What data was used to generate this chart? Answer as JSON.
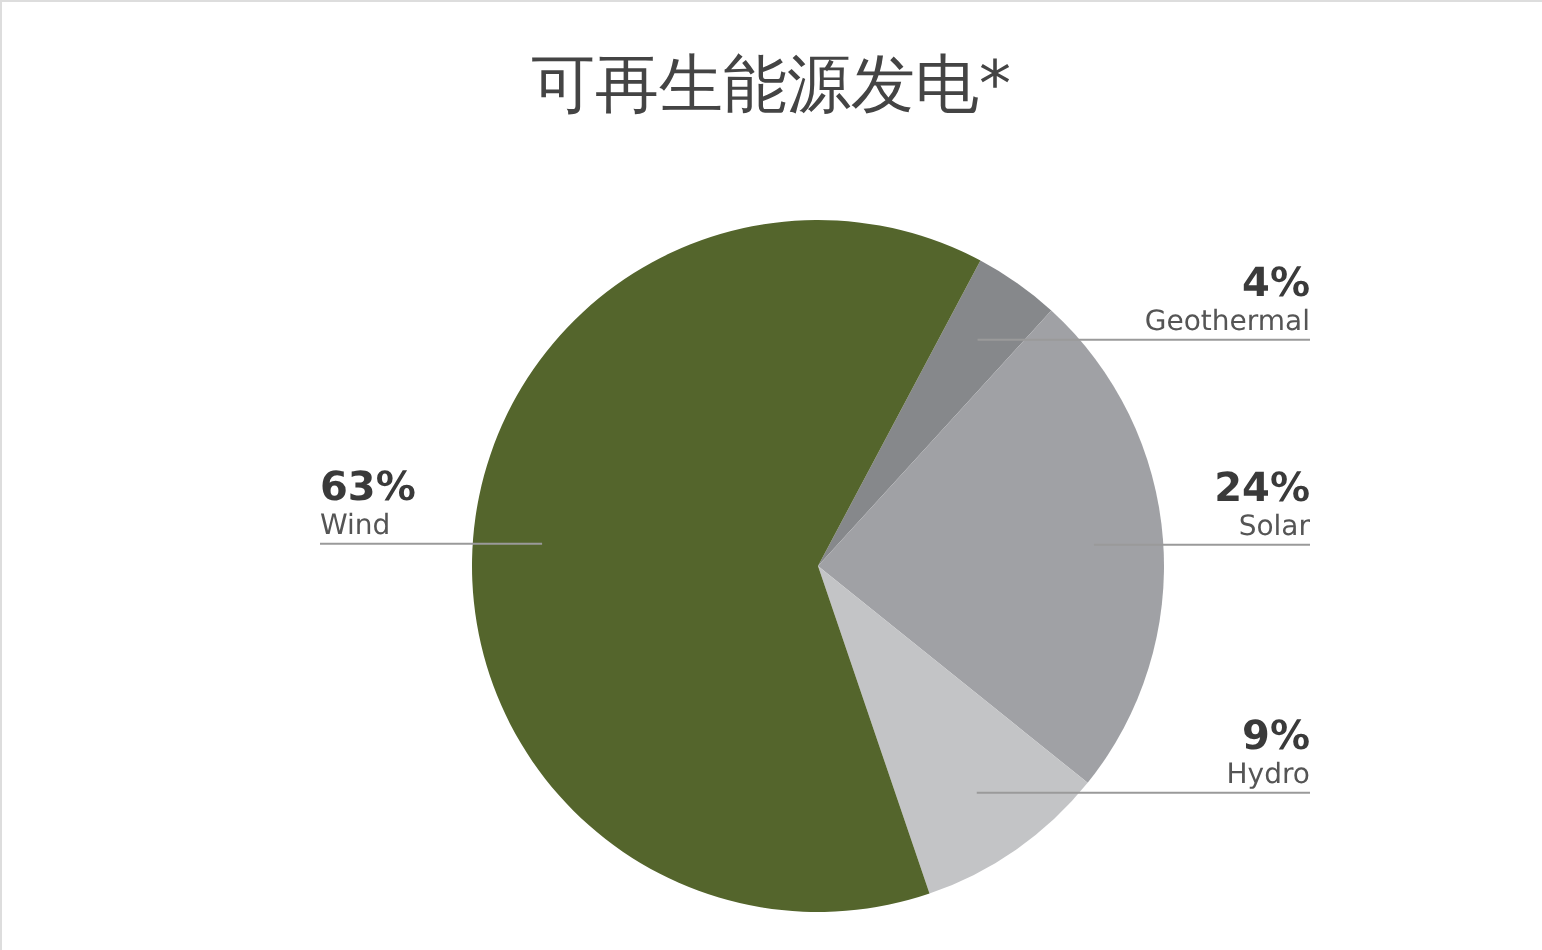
{
  "chart_data": {
    "type": "pie",
    "title": "可再生能源发电*",
    "categories": [
      "Geothermal",
      "Solar",
      "Hydro",
      "Wind"
    ],
    "values": [
      4,
      24,
      9,
      63
    ],
    "value_labels": [
      "4%",
      "24%",
      "9%",
      "63%"
    ],
    "colors": [
      "#86888b",
      "#a0a1a5",
      "#c3c4c6",
      "#54652c"
    ]
  }
}
